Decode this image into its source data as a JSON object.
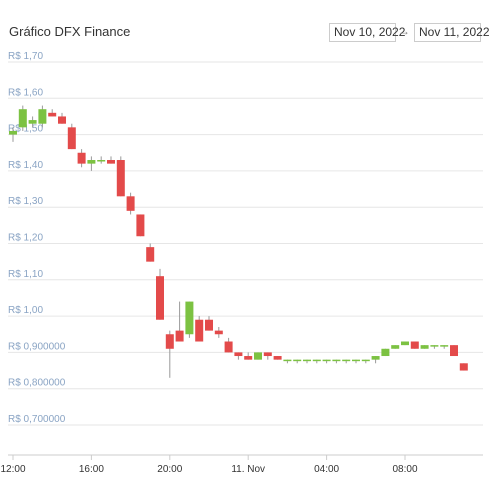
{
  "header": {
    "title": "Gráfico DFX Finance",
    "date_from": "Nov 10, 2022",
    "date_arrow": "→",
    "date_to": "Nov 11, 2022"
  },
  "chart_data": {
    "type": "candlestick",
    "title": "Gráfico DFX Finance",
    "ylim": [
      0.7,
      1.7
    ],
    "yticks": [
      {
        "value": 1.7,
        "label": "R$ 1,70"
      },
      {
        "value": 1.6,
        "label": "R$ 1,60"
      },
      {
        "value": 1.5,
        "label": "R$ 1,50"
      },
      {
        "value": 1.4,
        "label": "R$ 1,40"
      },
      {
        "value": 1.3,
        "label": "R$ 1,30"
      },
      {
        "value": 1.2,
        "label": "R$ 1,20"
      },
      {
        "value": 1.1,
        "label": "R$ 1,10"
      },
      {
        "value": 1.0,
        "label": "R$ 1,00"
      },
      {
        "value": 0.9,
        "label": "R$ 0,900000"
      },
      {
        "value": 0.8,
        "label": "R$ 0,800000"
      },
      {
        "value": 0.7,
        "label": "R$ 0,700000"
      }
    ],
    "xticks": [
      {
        "hours": 0,
        "label": "12:00"
      },
      {
        "hours": 4,
        "label": "16:00"
      },
      {
        "hours": 8,
        "label": "20:00"
      },
      {
        "hours": 12,
        "label": "11. Nov"
      },
      {
        "hours": 16,
        "label": "04:00"
      },
      {
        "hours": 20,
        "label": "08:00"
      }
    ],
    "grid": true,
    "colors": {
      "up": "#7cc242",
      "down": "#e34a4a",
      "grid": "#e6e6e6",
      "axis": "#cccccc"
    },
    "candles": [
      {
        "t": 0.0,
        "o": 1.5,
        "h": 1.52,
        "l": 1.48,
        "c": 1.51
      },
      {
        "t": 0.5,
        "o": 1.52,
        "h": 1.58,
        "l": 1.51,
        "c": 1.57
      },
      {
        "t": 1.0,
        "o": 1.53,
        "h": 1.55,
        "l": 1.52,
        "c": 1.54
      },
      {
        "t": 1.5,
        "o": 1.53,
        "h": 1.58,
        "l": 1.52,
        "c": 1.57
      },
      {
        "t": 2.0,
        "o": 1.56,
        "h": 1.57,
        "l": 1.55,
        "c": 1.55
      },
      {
        "t": 2.5,
        "o": 1.55,
        "h": 1.56,
        "l": 1.53,
        "c": 1.53
      },
      {
        "t": 3.0,
        "o": 1.52,
        "h": 1.53,
        "l": 1.46,
        "c": 1.46
      },
      {
        "t": 3.5,
        "o": 1.45,
        "h": 1.46,
        "l": 1.41,
        "c": 1.42
      },
      {
        "t": 4.0,
        "o": 1.42,
        "h": 1.44,
        "l": 1.4,
        "c": 1.43
      },
      {
        "t": 4.5,
        "o": 1.43,
        "h": 1.44,
        "l": 1.42,
        "c": 1.43
      },
      {
        "t": 5.0,
        "o": 1.43,
        "h": 1.44,
        "l": 1.42,
        "c": 1.42
      },
      {
        "t": 5.5,
        "o": 1.43,
        "h": 1.44,
        "l": 1.33,
        "c": 1.33
      },
      {
        "t": 6.0,
        "o": 1.33,
        "h": 1.34,
        "l": 1.28,
        "c": 1.29
      },
      {
        "t": 6.5,
        "o": 1.28,
        "h": 1.28,
        "l": 1.22,
        "c": 1.22
      },
      {
        "t": 7.0,
        "o": 1.19,
        "h": 1.2,
        "l": 1.15,
        "c": 1.15
      },
      {
        "t": 7.5,
        "o": 1.11,
        "h": 1.13,
        "l": 0.99,
        "c": 0.99
      },
      {
        "t": 8.0,
        "o": 0.95,
        "h": 0.96,
        "l": 0.83,
        "c": 0.91
      },
      {
        "t": 8.5,
        "o": 0.96,
        "h": 1.04,
        "l": 0.93,
        "c": 0.93
      },
      {
        "t": 9.0,
        "o": 0.95,
        "h": 1.04,
        "l": 0.94,
        "c": 1.04
      },
      {
        "t": 9.5,
        "o": 0.99,
        "h": 1.0,
        "l": 0.93,
        "c": 0.93
      },
      {
        "t": 10.0,
        "o": 0.99,
        "h": 1.0,
        "l": 0.96,
        "c": 0.96
      },
      {
        "t": 10.5,
        "o": 0.96,
        "h": 0.97,
        "l": 0.94,
        "c": 0.95
      },
      {
        "t": 11.0,
        "o": 0.93,
        "h": 0.94,
        "l": 0.9,
        "c": 0.9
      },
      {
        "t": 11.5,
        "o": 0.9,
        "h": 0.9,
        "l": 0.88,
        "c": 0.89
      },
      {
        "t": 12.0,
        "o": 0.89,
        "h": 0.9,
        "l": 0.88,
        "c": 0.88
      },
      {
        "t": 12.5,
        "o": 0.88,
        "h": 0.9,
        "l": 0.88,
        "c": 0.9
      },
      {
        "t": 13.0,
        "o": 0.9,
        "h": 0.9,
        "l": 0.88,
        "c": 0.89
      },
      {
        "t": 13.5,
        "o": 0.89,
        "h": 0.89,
        "l": 0.88,
        "c": 0.88
      },
      {
        "t": 14.0,
        "o": 0.88,
        "h": 0.88,
        "l": 0.87,
        "c": 0.88
      },
      {
        "t": 14.5,
        "o": 0.88,
        "h": 0.88,
        "l": 0.87,
        "c": 0.88
      },
      {
        "t": 15.0,
        "o": 0.88,
        "h": 0.88,
        "l": 0.87,
        "c": 0.88
      },
      {
        "t": 15.5,
        "o": 0.88,
        "h": 0.88,
        "l": 0.87,
        "c": 0.88
      },
      {
        "t": 16.0,
        "o": 0.88,
        "h": 0.88,
        "l": 0.87,
        "c": 0.88
      },
      {
        "t": 16.5,
        "o": 0.88,
        "h": 0.88,
        "l": 0.87,
        "c": 0.88
      },
      {
        "t": 17.0,
        "o": 0.88,
        "h": 0.88,
        "l": 0.87,
        "c": 0.88
      },
      {
        "t": 17.5,
        "o": 0.88,
        "h": 0.88,
        "l": 0.87,
        "c": 0.88
      },
      {
        "t": 18.0,
        "o": 0.88,
        "h": 0.88,
        "l": 0.87,
        "c": 0.88
      },
      {
        "t": 18.5,
        "o": 0.88,
        "h": 0.89,
        "l": 0.87,
        "c": 0.89
      },
      {
        "t": 19.0,
        "o": 0.89,
        "h": 0.91,
        "l": 0.89,
        "c": 0.91
      },
      {
        "t": 19.5,
        "o": 0.91,
        "h": 0.92,
        "l": 0.91,
        "c": 0.92
      },
      {
        "t": 20.0,
        "o": 0.92,
        "h": 0.93,
        "l": 0.92,
        "c": 0.93
      },
      {
        "t": 20.5,
        "o": 0.93,
        "h": 0.93,
        "l": 0.91,
        "c": 0.91
      },
      {
        "t": 21.0,
        "o": 0.91,
        "h": 0.92,
        "l": 0.91,
        "c": 0.92
      },
      {
        "t": 21.5,
        "o": 0.92,
        "h": 0.92,
        "l": 0.91,
        "c": 0.92
      },
      {
        "t": 22.0,
        "o": 0.92,
        "h": 0.92,
        "l": 0.91,
        "c": 0.92
      },
      {
        "t": 22.5,
        "o": 0.92,
        "h": 0.92,
        "l": 0.89,
        "c": 0.89
      },
      {
        "t": 23.0,
        "o": 0.87,
        "h": 0.87,
        "l": 0.85,
        "c": 0.85
      }
    ]
  }
}
